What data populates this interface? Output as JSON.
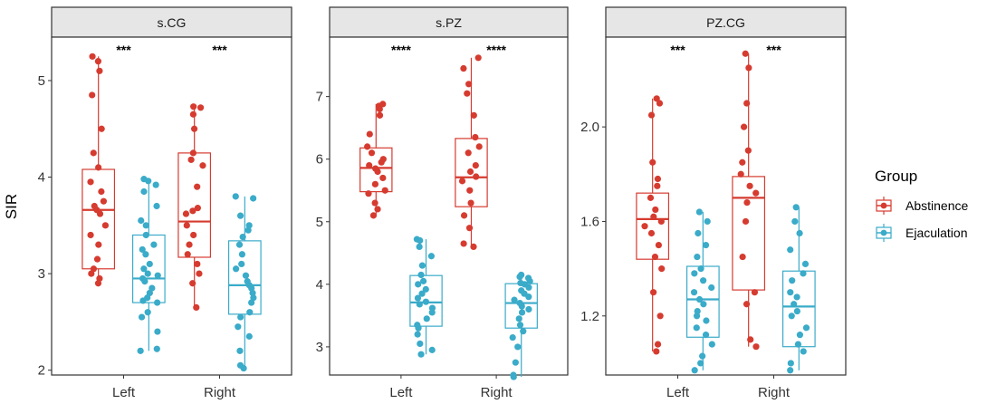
{
  "chart_data": [
    {
      "type": "boxplot",
      "panel": "s.CG",
      "ylabel": "SIR",
      "ylim": [
        1.95,
        5.45
      ],
      "yticks": [
        2,
        3,
        4,
        5
      ],
      "categories": [
        "Left",
        "Right"
      ],
      "groups": [
        "Abstinence",
        "Ejaculation"
      ],
      "significance": [
        "***",
        "***"
      ],
      "boxes": [
        {
          "category": "Left",
          "group": "Abstinence",
          "min": 2.9,
          "q1": 3.05,
          "median": 3.66,
          "q3": 4.08,
          "max": 5.25,
          "points": [
            2.9,
            2.95,
            3.0,
            3.05,
            3.15,
            3.3,
            3.4,
            3.5,
            3.62,
            3.66,
            3.7,
            3.75,
            3.85,
            3.95,
            4.1,
            4.25,
            4.5,
            4.85,
            5.1,
            5.2,
            5.25
          ]
        },
        {
          "category": "Left",
          "group": "Ejaculation",
          "min": 2.2,
          "q1": 2.7,
          "median": 2.95,
          "q3": 3.4,
          "max": 3.98,
          "points": [
            2.2,
            2.22,
            2.4,
            2.55,
            2.6,
            2.7,
            2.72,
            2.75,
            2.8,
            2.85,
            2.92,
            2.95,
            2.98,
            3.0,
            3.05,
            3.1,
            3.2,
            3.25,
            3.3,
            3.4,
            3.5,
            3.55,
            3.7,
            3.85,
            3.92,
            3.96,
            3.98
          ]
        },
        {
          "category": "Right",
          "group": "Abstinence",
          "min": 2.65,
          "q1": 3.17,
          "median": 3.54,
          "q3": 4.25,
          "max": 4.73,
          "points": [
            2.65,
            2.9,
            3.0,
            3.1,
            3.2,
            3.3,
            3.4,
            3.5,
            3.62,
            3.65,
            3.68,
            3.9,
            4.12,
            4.18,
            4.25,
            4.5,
            4.65,
            4.72,
            4.73
          ]
        },
        {
          "category": "Right",
          "group": "Ejaculation",
          "min": 2.02,
          "q1": 2.58,
          "median": 2.88,
          "q3": 3.34,
          "max": 3.8,
          "points": [
            2.02,
            2.05,
            2.2,
            2.35,
            2.45,
            2.55,
            2.6,
            2.7,
            2.75,
            2.8,
            2.85,
            2.88,
            2.92,
            2.98,
            3.05,
            3.1,
            3.2,
            3.3,
            3.38,
            3.45,
            3.5,
            3.6,
            3.78,
            3.8
          ]
        }
      ]
    },
    {
      "type": "boxplot",
      "panel": "s.PZ",
      "ylim": [
        2.55,
        7.95
      ],
      "yticks": [
        3,
        4,
        5,
        6,
        7
      ],
      "categories": [
        "Left",
        "Right"
      ],
      "groups": [
        "Abstinence",
        "Ejaculation"
      ],
      "significance": [
        "****",
        "****"
      ],
      "boxes": [
        {
          "category": "Left",
          "group": "Abstinence",
          "min": 5.1,
          "q1": 5.48,
          "median": 5.86,
          "q3": 6.18,
          "max": 6.88,
          "points": [
            5.1,
            5.2,
            5.3,
            5.45,
            5.5,
            5.6,
            5.7,
            5.8,
            5.85,
            5.9,
            5.95,
            6.0,
            6.1,
            6.2,
            6.4,
            6.7,
            6.8,
            6.85,
            6.88
          ]
        },
        {
          "category": "Left",
          "group": "Ejaculation",
          "min": 2.88,
          "q1": 3.33,
          "median": 3.71,
          "q3": 4.14,
          "max": 4.72,
          "points": [
            2.88,
            2.95,
            3.05,
            3.2,
            3.3,
            3.35,
            3.45,
            3.55,
            3.62,
            3.68,
            3.72,
            3.78,
            3.85,
            3.92,
            4.0,
            4.05,
            4.15,
            4.3,
            4.45,
            4.6,
            4.7,
            4.72
          ]
        },
        {
          "category": "Right",
          "group": "Abstinence",
          "min": 4.6,
          "q1": 5.24,
          "median": 5.71,
          "q3": 6.33,
          "max": 7.62,
          "points": [
            4.6,
            4.65,
            4.9,
            5.1,
            5.3,
            5.5,
            5.65,
            5.72,
            5.8,
            5.9,
            6.1,
            6.2,
            6.35,
            6.7,
            7.05,
            7.2,
            7.45,
            7.62
          ]
        },
        {
          "category": "Right",
          "group": "Ejaculation",
          "min": 2.52,
          "q1": 3.3,
          "median": 3.7,
          "q3": 4.01,
          "max": 4.15,
          "points": [
            2.52,
            2.55,
            2.75,
            3.0,
            3.15,
            3.25,
            3.35,
            3.45,
            3.55,
            3.6,
            3.65,
            3.7,
            3.75,
            3.8,
            3.85,
            3.9,
            3.95,
            4.0,
            4.02,
            4.05,
            4.1,
            4.12,
            4.15
          ]
        }
      ]
    },
    {
      "type": "boxplot",
      "panel": "PZ.CG",
      "ylim": [
        0.95,
        2.38
      ],
      "yticks": [
        1.2,
        1.6,
        2.0
      ],
      "ytick_labels": [
        "1.2",
        "1.6",
        "2.0"
      ],
      "categories": [
        "Left",
        "Right"
      ],
      "groups": [
        "Abstinence",
        "Ejaculation"
      ],
      "significance": [
        "***",
        "***"
      ],
      "boxes": [
        {
          "category": "Left",
          "group": "Abstinence",
          "min": 1.05,
          "q1": 1.44,
          "median": 1.61,
          "q3": 1.72,
          "max": 2.12,
          "points": [
            1.05,
            1.08,
            1.2,
            1.3,
            1.4,
            1.45,
            1.5,
            1.55,
            1.58,
            1.6,
            1.62,
            1.65,
            1.7,
            1.75,
            1.78,
            1.85,
            2.05,
            2.1,
            2.12
          ]
        },
        {
          "category": "Left",
          "group": "Ejaculation",
          "min": 0.97,
          "q1": 1.11,
          "median": 1.27,
          "q3": 1.41,
          "max": 1.64,
          "points": [
            0.97,
            1.0,
            1.03,
            1.08,
            1.12,
            1.15,
            1.18,
            1.2,
            1.22,
            1.25,
            1.27,
            1.3,
            1.32,
            1.35,
            1.38,
            1.4,
            1.45,
            1.5,
            1.55,
            1.6,
            1.64
          ]
        },
        {
          "category": "Right",
          "group": "Abstinence",
          "min": 1.07,
          "q1": 1.31,
          "median": 1.7,
          "q3": 1.79,
          "max": 2.31,
          "points": [
            1.07,
            1.1,
            1.25,
            1.3,
            1.45,
            1.6,
            1.68,
            1.72,
            1.75,
            1.8,
            1.85,
            1.9,
            2.0,
            2.1,
            2.25,
            2.31
          ]
        },
        {
          "category": "Right",
          "group": "Ejaculation",
          "min": 0.97,
          "q1": 1.07,
          "median": 1.24,
          "q3": 1.39,
          "max": 1.66,
          "points": [
            0.97,
            1.0,
            1.05,
            1.08,
            1.12,
            1.15,
            1.2,
            1.22,
            1.25,
            1.28,
            1.3,
            1.35,
            1.38,
            1.42,
            1.48,
            1.55,
            1.6,
            1.66
          ]
        }
      ]
    }
  ],
  "legend": {
    "title": "Group",
    "items": [
      {
        "label": "Abstinence",
        "color": "#D63B30"
      },
      {
        "label": "Ejaculation",
        "color": "#3AABC9"
      }
    ]
  },
  "colors": {
    "Abstinence": "#D63B30",
    "Ejaculation": "#3AABC9",
    "strip_bg": "#E6E6E6",
    "frame": "#333333"
  }
}
